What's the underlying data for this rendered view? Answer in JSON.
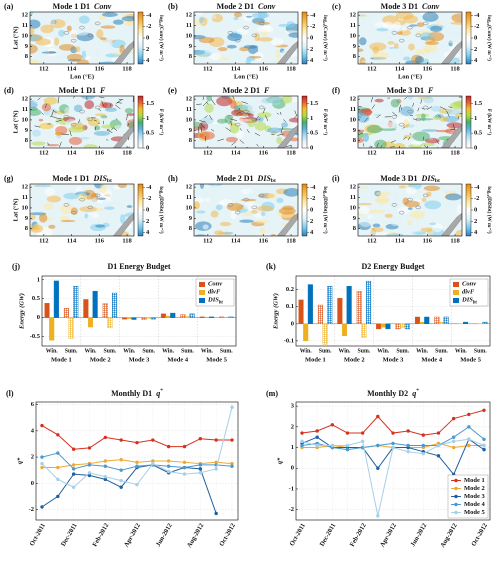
{
  "chart_data": [
    {
      "type": "map",
      "panel": "(a)",
      "title": "Mode 1  D1",
      "variable": "Conv",
      "xlim": [
        111,
        118.5
      ],
      "ylim": [
        7.3,
        12.3
      ],
      "xticks": [
        112,
        114,
        116,
        118
      ],
      "yticks": [
        8,
        9,
        10,
        11,
        12
      ],
      "xlabel": "Lon (°E)",
      "ylabel": "Lat (°N)",
      "colorbar": {
        "label": "log₁₀(Conv) (W m⁻²)",
        "lim": [
          4.6,
          -4.6
        ],
        "ticks": [
          -4,
          -2,
          0,
          2,
          4
        ],
        "colors": [
          "#2c7fb8",
          "#7fcdee",
          "#e0f3f8",
          "#ffffff",
          "#fee8a0",
          "#f5b84a",
          "#e08a20"
        ]
      }
    },
    {
      "type": "map",
      "panel": "(b)",
      "title": "Mode 2  D1",
      "variable": "Conv",
      "xlim": [
        111,
        118.5
      ],
      "ylim": [
        7.3,
        12.3
      ],
      "xticks": [
        112,
        114,
        116,
        118
      ],
      "yticks": [
        8,
        9,
        10,
        11,
        12
      ],
      "xlabel": "Lon (°E)",
      "colorbar": {
        "label": "log₁₀(Conv) (W m⁻²)",
        "lim": [
          4.6,
          -4.6
        ],
        "ticks": [
          -4,
          -2,
          0,
          2,
          4
        ],
        "colors": [
          "#2c7fb8",
          "#7fcdee",
          "#e0f3f8",
          "#ffffff",
          "#fee8a0",
          "#f5b84a",
          "#e08a20"
        ]
      }
    },
    {
      "type": "map",
      "panel": "(c)",
      "title": "Mode 3  D1",
      "variable": "Conv",
      "xlim": [
        111,
        118.5
      ],
      "ylim": [
        7.3,
        12.3
      ],
      "xticks": [
        112,
        114,
        116,
        118
      ],
      "yticks": [
        8,
        9,
        10,
        11,
        12
      ],
      "xlabel": "Lon (°E)",
      "colorbar": {
        "label": "log₁₀(Conv) (W m⁻²)",
        "lim": [
          4.6,
          -4.6
        ],
        "ticks": [
          -4,
          -2,
          0,
          2,
          4
        ],
        "colors": [
          "#2c7fb8",
          "#7fcdee",
          "#e0f3f8",
          "#ffffff",
          "#fee8a0",
          "#f5b84a",
          "#e08a20"
        ]
      }
    },
    {
      "type": "map",
      "panel": "(d)",
      "title": "Mode 1  D1",
      "variable": "F",
      "xlim": [
        111,
        118.5
      ],
      "ylim": [
        7.3,
        12.3
      ],
      "xticks": [
        112,
        114,
        116,
        118
      ],
      "yticks": [
        8,
        9,
        10,
        11,
        12
      ],
      "ylabel": "Lat (°N)",
      "colorbar": {
        "label": "F (kW m⁻¹)",
        "lim": [
          0,
          1.75
        ],
        "ticks": [
          0,
          0.5,
          1,
          1.5
        ],
        "colors": [
          "#ffffff",
          "#e4f2fa",
          "#a9d8ee",
          "#5fb0d8",
          "#4cae6a",
          "#b5d84a",
          "#f0c030",
          "#e8603a",
          "#c0282a"
        ]
      }
    },
    {
      "type": "map",
      "panel": "(e)",
      "title": "Mode 2  D1",
      "variable": "F",
      "xlim": [
        111,
        118.5
      ],
      "ylim": [
        7.3,
        12.3
      ],
      "xticks": [
        112,
        114,
        116,
        118
      ],
      "yticks": [
        8,
        9,
        10,
        11,
        12
      ],
      "colorbar": {
        "label": "F (kW m⁻¹)",
        "lim": [
          0,
          1.75
        ],
        "ticks": [
          0,
          0.5,
          1,
          1.5
        ],
        "colors": [
          "#ffffff",
          "#e4f2fa",
          "#a9d8ee",
          "#5fb0d8",
          "#4cae6a",
          "#b5d84a",
          "#f0c030",
          "#e8603a",
          "#c0282a"
        ]
      }
    },
    {
      "type": "map",
      "panel": "(f)",
      "title": "Mode 3  D1",
      "variable": "F",
      "xlim": [
        111,
        118.5
      ],
      "ylim": [
        7.3,
        12.3
      ],
      "xticks": [
        112,
        114,
        116,
        118
      ],
      "yticks": [
        8,
        9,
        10,
        11,
        12
      ],
      "colorbar": {
        "label": "F (kW m⁻¹)",
        "lim": [
          0,
          1.75
        ],
        "ticks": [
          0,
          0.5,
          1,
          1.5
        ],
        "colors": [
          "#ffffff",
          "#e4f2fa",
          "#a9d8ee",
          "#5fb0d8",
          "#4cae6a",
          "#b5d84a",
          "#f0c030",
          "#e8603a",
          "#c0282a"
        ]
      }
    },
    {
      "type": "map",
      "panel": "(g)",
      "title": "Mode 1  D1",
      "variable": "DIS",
      "variable_sub": "bt",
      "xlim": [
        111,
        118.5
      ],
      "ylim": [
        7.3,
        12.3
      ],
      "xticks": [
        112,
        114,
        116,
        118
      ],
      "yticks": [
        8,
        9,
        10,
        11,
        12
      ],
      "ylabel": "Lat (°N)",
      "colorbar": {
        "label": "log₁₀(DISbt) (W m⁻²)",
        "lim": [
          4.6,
          -4.6
        ],
        "ticks": [
          -4,
          -2,
          0,
          2,
          4
        ],
        "colors": [
          "#2c7fb8",
          "#7fcdee",
          "#e0f3f8",
          "#ffffff",
          "#fee8a0",
          "#f5b84a",
          "#e08a20"
        ]
      }
    },
    {
      "type": "map",
      "panel": "(h)",
      "title": "Mode 2  D1",
      "variable": "DIS",
      "variable_sub": "bt",
      "xlim": [
        111,
        118.5
      ],
      "ylim": [
        7.3,
        12.3
      ],
      "xticks": [
        112,
        114,
        116,
        118
      ],
      "yticks": [
        8,
        9,
        10,
        11,
        12
      ],
      "colorbar": {
        "label": "log₁₀(DISbt) (W m⁻²)",
        "lim": [
          4.6,
          -4.6
        ],
        "ticks": [
          -4,
          -2,
          0,
          2,
          4
        ],
        "colors": [
          "#2c7fb8",
          "#7fcdee",
          "#e0f3f8",
          "#ffffff",
          "#fee8a0",
          "#f5b84a",
          "#e08a20"
        ]
      }
    },
    {
      "type": "map",
      "panel": "(i)",
      "title": "Mode 3  D1",
      "variable": "DIS",
      "variable_sub": "bt",
      "xlim": [
        111,
        118.5
      ],
      "ylim": [
        7.3,
        12.3
      ],
      "xticks": [
        112,
        114,
        116,
        118
      ],
      "yticks": [
        8,
        9,
        10,
        11,
        12
      ],
      "colorbar": {
        "label": "log₁₀(DISbt) (W m⁻²)",
        "lim": [
          4.6,
          -4.6
        ],
        "ticks": [
          -4,
          -2,
          0,
          2,
          4
        ],
        "colors": [
          "#2c7fb8",
          "#7fcdee",
          "#e0f3f8",
          "#ffffff",
          "#fee8a0",
          "#f5b84a",
          "#e08a20"
        ]
      }
    },
    {
      "type": "bar",
      "panel": "(j)",
      "title": "D1 Energy Budget",
      "ylabel": "Energy (GW)",
      "categories": [
        "Win.",
        "Sum.",
        "Win.",
        "Sum.",
        "Win.",
        "Sum.",
        "Win.",
        "Sum.",
        "Win.",
        "Sum."
      ],
      "groups": [
        "Mode 1",
        "Mode 2",
        "Mode 3",
        "Mode 4",
        "Mode 5"
      ],
      "hatched_categories": [
        "Sum."
      ],
      "ylim": [
        -0.75,
        1.1
      ],
      "yticks": [
        -0.5,
        0,
        0.5,
        1
      ],
      "grid": true,
      "legend": "upper right",
      "series": [
        {
          "name": "Conv",
          "color": "#d95319",
          "values": [
            0.38,
            0.25,
            0.48,
            0.37,
            -0.04,
            -0.05,
            0.1,
            0.08,
            0.02,
            0.02
          ]
        },
        {
          "name": "divF",
          "color": "#edb120",
          "values": [
            -0.6,
            -0.55,
            -0.25,
            -0.27,
            -0.03,
            -0.02,
            0.04,
            0.03,
            0.01,
            0.01
          ]
        },
        {
          "name": "DIS",
          "name_sub": "bt",
          "color": "#0072bd",
          "values": [
            0.97,
            0.83,
            0.7,
            0.65,
            -0.05,
            -0.04,
            0.12,
            0.1,
            0.02,
            0.02
          ]
        }
      ]
    },
    {
      "type": "bar",
      "panel": "(k)",
      "title": "D2 Energy Budget",
      "ylabel": "Energy (GW)",
      "categories": [
        "Win.",
        "Sum.",
        "Win.",
        "Sum.",
        "Win.",
        "Sum.",
        "Win.",
        "Sum.",
        "Win.",
        "Sum."
      ],
      "groups": [
        "Mode 1",
        "Mode 2",
        "Mode 3",
        "Mode 4",
        "Mode 5"
      ],
      "hatched_categories": [
        "Sum."
      ],
      "ylim": [
        -0.13,
        0.28
      ],
      "yticks": [
        -0.1,
        0,
        0.1,
        0.2
      ],
      "grid": true,
      "legend": "upper right",
      "series": [
        {
          "name": "Conv",
          "color": "#d95319",
          "values": [
            0.14,
            0.11,
            0.15,
            0.19,
            -0.03,
            -0.03,
            0.04,
            0.04,
            0.0,
            0.0
          ]
        },
        {
          "name": "divF",
          "color": "#edb120",
          "values": [
            -0.1,
            -0.12,
            -0.07,
            -0.08,
            -0.02,
            -0.02,
            0.01,
            0.01,
            0.0,
            0.0
          ]
        },
        {
          "name": "DIS",
          "name_sub": "bt",
          "color": "#0072bd",
          "values": [
            0.23,
            0.22,
            0.22,
            0.25,
            -0.03,
            -0.03,
            0.04,
            0.04,
            0.01,
            0.01
          ]
        }
      ]
    },
    {
      "type": "line",
      "panel": "(l)",
      "title": "Monthly  D1",
      "variable": "q",
      "variable_sup": "*",
      "ylabel": "q*",
      "categories": [
        "Oct-2011",
        null,
        "Dec-2011",
        null,
        "Feb-2012",
        null,
        "Apr-2012",
        null,
        "Jun-2012",
        null,
        "Aug-2012",
        null,
        "Oct-2012"
      ],
      "ylim": [
        -2.8,
        6.2
      ],
      "yticks": [
        -2,
        0,
        2,
        4,
        6
      ],
      "grid": true,
      "series": [
        {
          "color": "#d7301f",
          "values": [
            4.4,
            3.7,
            2.6,
            2.7,
            3.5,
            3.3,
            3.1,
            3.3,
            2.8,
            2.8,
            3.4,
            3.3,
            3.3
          ]
        },
        {
          "color": "#f0a830",
          "values": [
            1.2,
            1.2,
            1.4,
            1.5,
            1.7,
            1.8,
            1.6,
            1.7,
            1.7,
            1.6,
            1.5,
            1.6,
            1.5
          ]
        },
        {
          "color": "#1f5fa0",
          "values": [
            -1.8,
            -1.0,
            0.7,
            0.6,
            0.3,
            -0.3,
            1.2,
            1.4,
            0.8,
            1.2,
            1.1,
            -2.3,
            null
          ]
        },
        {
          "color": "#4a9ad0",
          "values": [
            2.0,
            2.3,
            1.1,
            1.4,
            1.3,
            1.0,
            1.3,
            1.4,
            1.3,
            1.2,
            1.4,
            1.4,
            1.3
          ]
        },
        {
          "color": "#a6cfe8",
          "values": [
            1.5,
            0.3,
            -0.3,
            0.8,
            0.5,
            0.2,
            -0.1,
            1.5,
            0.9,
            0.7,
            0.8,
            1.1,
            5.8
          ]
        }
      ]
    },
    {
      "type": "line",
      "panel": "(m)",
      "title": "Monthly  D2",
      "variable": "q",
      "variable_sup": "*",
      "ylabel": "q*",
      "categories": [
        "Oct-2011",
        null,
        "Dec-2011",
        null,
        "Feb-2012",
        null,
        "Apr-2012",
        null,
        "Jun-2012",
        null,
        "Aug-2012",
        null,
        "Oct-2012"
      ],
      "ylim": [
        -2.5,
        3.2
      ],
      "yticks": [
        -2,
        -1,
        0,
        1,
        2,
        3
      ],
      "grid": true,
      "legend": "lower right",
      "series": [
        {
          "name": "Mode 1",
          "color": "#d7301f",
          "values": [
            1.7,
            1.8,
            2.1,
            1.7,
            1.7,
            2.5,
            1.7,
            1.8,
            1.6,
            1.7,
            2.4,
            2.6,
            2.8
          ]
        },
        {
          "name": "Mode 2",
          "color": "#f0a830",
          "values": [
            1.0,
            1.0,
            1.1,
            1.0,
            1.0,
            1.1,
            1.0,
            1.0,
            1.0,
            1.2,
            1.0,
            1.1,
            1.1
          ]
        },
        {
          "name": "Mode 3",
          "color": "#1f5fa0",
          "values": [
            1.2,
            1.5,
            1.0,
            1.0,
            1.0,
            0.0,
            1.0,
            1.0,
            0.8,
            0.6,
            -0.3,
            1.4,
            0.9
          ]
        },
        {
          "name": "Mode 4",
          "color": "#4a9ad0",
          "values": [
            1.1,
            1.2,
            1.0,
            0.9,
            1.0,
            1.1,
            1.2,
            1.1,
            1.1,
            1.1,
            1.5,
            2.0,
            1.4
          ]
        },
        {
          "name": "Mode 5",
          "color": "#a6cfe8",
          "values": [
            1.3,
            1.1,
            1.1,
            1.1,
            1.3,
            -2.3,
            1.0,
            0.8,
            0.7,
            1.1,
            1.3,
            1.4,
            1.1
          ]
        }
      ]
    }
  ]
}
